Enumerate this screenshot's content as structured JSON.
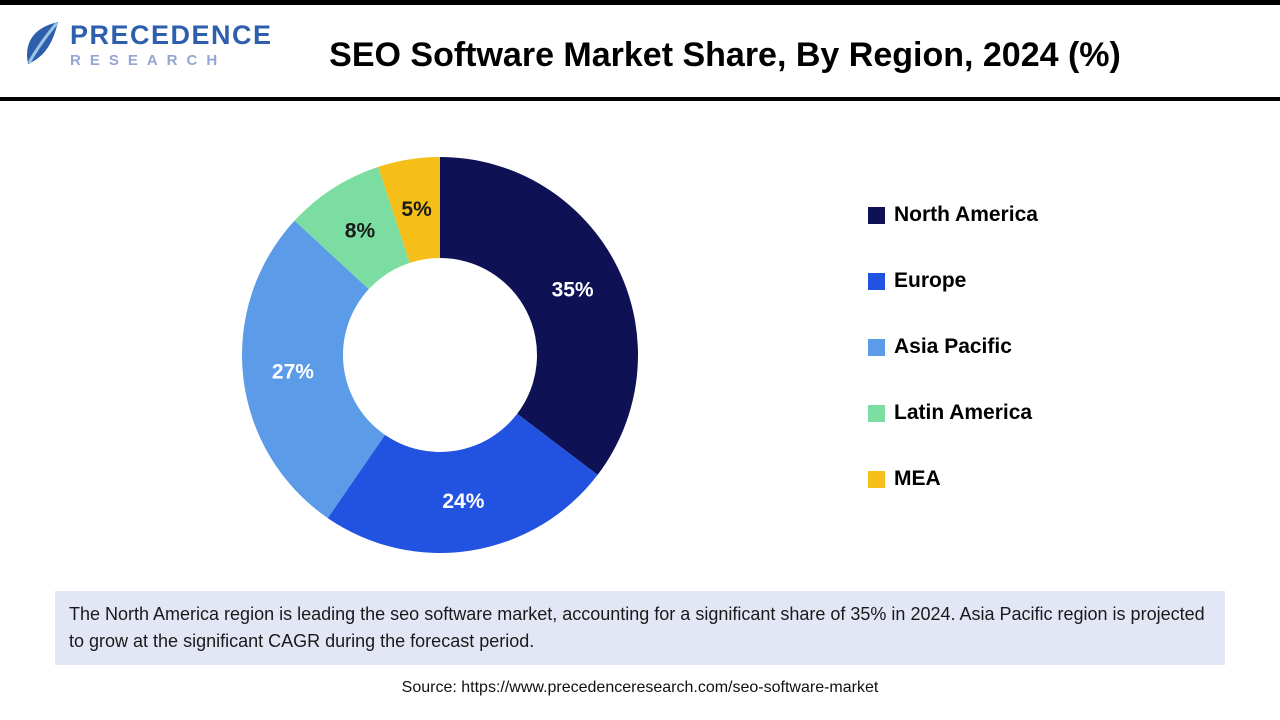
{
  "header": {
    "logo": {
      "line1": "PRECEDENCE",
      "line2": "RESEARCH"
    },
    "title": "SEO Software Market Share, By Region, 2024 (%)"
  },
  "chart_data": {
    "type": "pie",
    "donut": true,
    "title": "SEO Software Market Share, By Region, 2024 (%)",
    "start_angle_deg": 0,
    "direction": "clockwise",
    "legend_position": "right",
    "unit": "%",
    "categories": [
      "North America",
      "Europe",
      "Asia Pacific",
      "Latin America",
      "MEA"
    ],
    "values": [
      35,
      24,
      27,
      8,
      5
    ],
    "labels": [
      "35%",
      "24%",
      "27%",
      "8%",
      "5%"
    ],
    "colors": [
      "#0E1254",
      "#2253E0",
      "#5B9BE8",
      "#7BDDA2",
      "#F5BE18"
    ],
    "label_colors": [
      "#FFFFFF",
      "#FFFFFF",
      "#FFFFFF",
      "#1A1A1A",
      "#1A1A1A"
    ]
  },
  "note": {
    "text": "The North America region is leading the seo software market, accounting for a significant share of 35% in 2024. Asia Pacific region is projected to grow at the significant CAGR during the forecast period."
  },
  "source": {
    "text": "Source: https://www.precedenceresearch.com/seo-software-market"
  }
}
